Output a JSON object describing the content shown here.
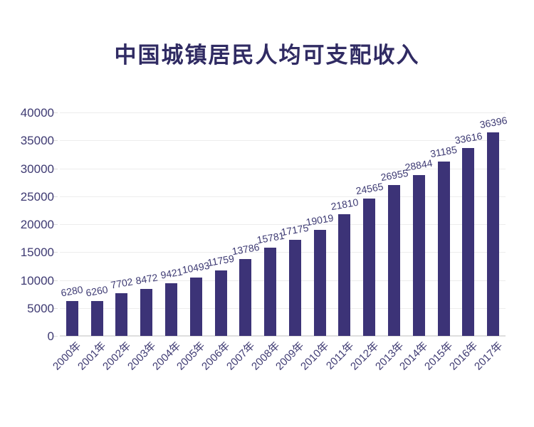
{
  "title": {
    "text": "中国城镇居民人均可支配收入",
    "color": "#302b63"
  },
  "chart_data": {
    "type": "bar",
    "title": "中国城镇居民人均可支配收入",
    "categories": [
      "2000年",
      "2001年",
      "2002年",
      "2003年",
      "2004年",
      "2005年",
      "2006年",
      "2007年",
      "2008年",
      "2009年",
      "2010年",
      "2011年",
      "2012年",
      "2013年",
      "2014年",
      "2015年",
      "2016年",
      "2017年"
    ],
    "values": [
      6280,
      6260,
      7702,
      8472,
      9421,
      10493,
      11759,
      13786,
      15781,
      17175,
      19019,
      21810,
      24565,
      26955,
      28844,
      31185,
      33616,
      36396
    ],
    "xlabel": "",
    "ylabel": "",
    "ylim": [
      0,
      40000
    ],
    "yticks": [
      0,
      5000,
      10000,
      15000,
      20000,
      25000,
      30000,
      35000,
      40000
    ],
    "grid": true,
    "legend_position": "none",
    "bar_color": "#3c3377",
    "gridline_color": "#ececec",
    "axis_label_color": "#3e3a72",
    "background_color": "#ffffff"
  }
}
